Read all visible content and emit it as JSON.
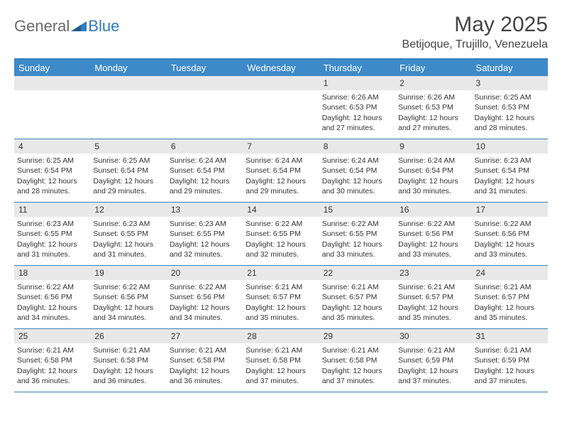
{
  "logo": {
    "general": "General",
    "blue": "Blue"
  },
  "title": "May 2025",
  "location": "Betijoque, Trujillo, Venezuela",
  "colors": {
    "header_bg": "#3e8ac9",
    "border": "#3a7fb8",
    "daynum_bg": "#e8e8e8",
    "logo_gray": "#6a6a6a",
    "logo_blue": "#2f7bbf"
  },
  "day_names": [
    "Sunday",
    "Monday",
    "Tuesday",
    "Wednesday",
    "Thursday",
    "Friday",
    "Saturday"
  ],
  "weeks": [
    [
      {
        "empty": true
      },
      {
        "empty": true
      },
      {
        "empty": true
      },
      {
        "empty": true
      },
      {
        "day": "1",
        "sunrise": "Sunrise: 6:26 AM",
        "sunset": "Sunset: 6:53 PM",
        "daylight": "Daylight: 12 hours and 27 minutes."
      },
      {
        "day": "2",
        "sunrise": "Sunrise: 6:26 AM",
        "sunset": "Sunset: 6:53 PM",
        "daylight": "Daylight: 12 hours and 27 minutes."
      },
      {
        "day": "3",
        "sunrise": "Sunrise: 6:25 AM",
        "sunset": "Sunset: 6:53 PM",
        "daylight": "Daylight: 12 hours and 28 minutes."
      }
    ],
    [
      {
        "day": "4",
        "sunrise": "Sunrise: 6:25 AM",
        "sunset": "Sunset: 6:54 PM",
        "daylight": "Daylight: 12 hours and 28 minutes."
      },
      {
        "day": "5",
        "sunrise": "Sunrise: 6:25 AM",
        "sunset": "Sunset: 6:54 PM",
        "daylight": "Daylight: 12 hours and 29 minutes."
      },
      {
        "day": "6",
        "sunrise": "Sunrise: 6:24 AM",
        "sunset": "Sunset: 6:54 PM",
        "daylight": "Daylight: 12 hours and 29 minutes."
      },
      {
        "day": "7",
        "sunrise": "Sunrise: 6:24 AM",
        "sunset": "Sunset: 6:54 PM",
        "daylight": "Daylight: 12 hours and 29 minutes."
      },
      {
        "day": "8",
        "sunrise": "Sunrise: 6:24 AM",
        "sunset": "Sunset: 6:54 PM",
        "daylight": "Daylight: 12 hours and 30 minutes."
      },
      {
        "day": "9",
        "sunrise": "Sunrise: 6:24 AM",
        "sunset": "Sunset: 6:54 PM",
        "daylight": "Daylight: 12 hours and 30 minutes."
      },
      {
        "day": "10",
        "sunrise": "Sunrise: 6:23 AM",
        "sunset": "Sunset: 6:54 PM",
        "daylight": "Daylight: 12 hours and 31 minutes."
      }
    ],
    [
      {
        "day": "11",
        "sunrise": "Sunrise: 6:23 AM",
        "sunset": "Sunset: 6:55 PM",
        "daylight": "Daylight: 12 hours and 31 minutes."
      },
      {
        "day": "12",
        "sunrise": "Sunrise: 6:23 AM",
        "sunset": "Sunset: 6:55 PM",
        "daylight": "Daylight: 12 hours and 31 minutes."
      },
      {
        "day": "13",
        "sunrise": "Sunrise: 6:23 AM",
        "sunset": "Sunset: 6:55 PM",
        "daylight": "Daylight: 12 hours and 32 minutes."
      },
      {
        "day": "14",
        "sunrise": "Sunrise: 6:22 AM",
        "sunset": "Sunset: 6:55 PM",
        "daylight": "Daylight: 12 hours and 32 minutes."
      },
      {
        "day": "15",
        "sunrise": "Sunrise: 6:22 AM",
        "sunset": "Sunset: 6:55 PM",
        "daylight": "Daylight: 12 hours and 33 minutes."
      },
      {
        "day": "16",
        "sunrise": "Sunrise: 6:22 AM",
        "sunset": "Sunset: 6:56 PM",
        "daylight": "Daylight: 12 hours and 33 minutes."
      },
      {
        "day": "17",
        "sunrise": "Sunrise: 6:22 AM",
        "sunset": "Sunset: 6:56 PM",
        "daylight": "Daylight: 12 hours and 33 minutes."
      }
    ],
    [
      {
        "day": "18",
        "sunrise": "Sunrise: 6:22 AM",
        "sunset": "Sunset: 6:56 PM",
        "daylight": "Daylight: 12 hours and 34 minutes."
      },
      {
        "day": "19",
        "sunrise": "Sunrise: 6:22 AM",
        "sunset": "Sunset: 6:56 PM",
        "daylight": "Daylight: 12 hours and 34 minutes."
      },
      {
        "day": "20",
        "sunrise": "Sunrise: 6:22 AM",
        "sunset": "Sunset: 6:56 PM",
        "daylight": "Daylight: 12 hours and 34 minutes."
      },
      {
        "day": "21",
        "sunrise": "Sunrise: 6:21 AM",
        "sunset": "Sunset: 6:57 PM",
        "daylight": "Daylight: 12 hours and 35 minutes."
      },
      {
        "day": "22",
        "sunrise": "Sunrise: 6:21 AM",
        "sunset": "Sunset: 6:57 PM",
        "daylight": "Daylight: 12 hours and 35 minutes."
      },
      {
        "day": "23",
        "sunrise": "Sunrise: 6:21 AM",
        "sunset": "Sunset: 6:57 PM",
        "daylight": "Daylight: 12 hours and 35 minutes."
      },
      {
        "day": "24",
        "sunrise": "Sunrise: 6:21 AM",
        "sunset": "Sunset: 6:57 PM",
        "daylight": "Daylight: 12 hours and 35 minutes."
      }
    ],
    [
      {
        "day": "25",
        "sunrise": "Sunrise: 6:21 AM",
        "sunset": "Sunset: 6:58 PM",
        "daylight": "Daylight: 12 hours and 36 minutes."
      },
      {
        "day": "26",
        "sunrise": "Sunrise: 6:21 AM",
        "sunset": "Sunset: 6:58 PM",
        "daylight": "Daylight: 12 hours and 36 minutes."
      },
      {
        "day": "27",
        "sunrise": "Sunrise: 6:21 AM",
        "sunset": "Sunset: 6:58 PM",
        "daylight": "Daylight: 12 hours and 36 minutes."
      },
      {
        "day": "28",
        "sunrise": "Sunrise: 6:21 AM",
        "sunset": "Sunset: 6:58 PM",
        "daylight": "Daylight: 12 hours and 37 minutes."
      },
      {
        "day": "29",
        "sunrise": "Sunrise: 6:21 AM",
        "sunset": "Sunset: 6:58 PM",
        "daylight": "Daylight: 12 hours and 37 minutes."
      },
      {
        "day": "30",
        "sunrise": "Sunrise: 6:21 AM",
        "sunset": "Sunset: 6:59 PM",
        "daylight": "Daylight: 12 hours and 37 minutes."
      },
      {
        "day": "31",
        "sunrise": "Sunrise: 6:21 AM",
        "sunset": "Sunset: 6:59 PM",
        "daylight": "Daylight: 12 hours and 37 minutes."
      }
    ]
  ]
}
